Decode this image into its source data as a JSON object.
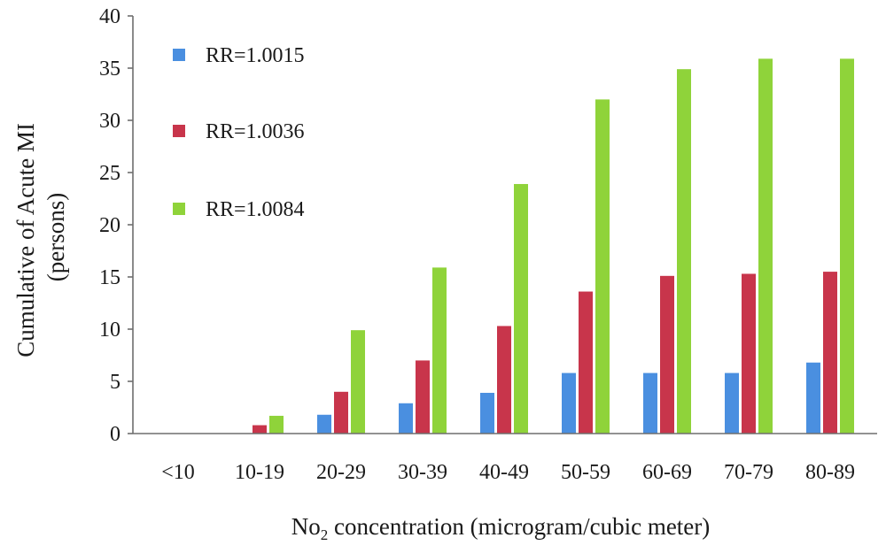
{
  "chart_data": {
    "type": "bar",
    "categories": [
      "<10",
      "10-19",
      "20-29",
      "30-39",
      "40-49",
      "50-59",
      "60-69",
      "70-79",
      "80-89"
    ],
    "series": [
      {
        "name": "RR=1.0015",
        "color": "#4a8fe0",
        "values": [
          0,
          0,
          1.8,
          2.9,
          3.9,
          5.8,
          5.8,
          5.8,
          6.8
        ]
      },
      {
        "name": "RR=1.0036",
        "color": "#c8354b",
        "values": [
          0,
          0.8,
          4.0,
          7.0,
          10.3,
          13.6,
          15.1,
          15.3,
          15.5
        ]
      },
      {
        "name": "RR=1.0084",
        "color": "#8fd33a",
        "values": [
          0,
          1.7,
          9.9,
          15.9,
          23.9,
          32.0,
          34.9,
          35.9,
          35.9
        ]
      }
    ],
    "ylim": [
      0,
      40
    ],
    "yticks": [
      "0",
      "5",
      "10",
      "15",
      "20",
      "25",
      "30",
      "35",
      "40"
    ],
    "ylabel_line1": "Cumulative of Acute MI",
    "ylabel_line2": "(persons)",
    "xlabel_prefix": "No",
    "xlabel_subscript": "2",
    "xlabel_suffix": " concentration (microgram/cubic meter)",
    "legend_position": "top-left",
    "grid": false
  }
}
